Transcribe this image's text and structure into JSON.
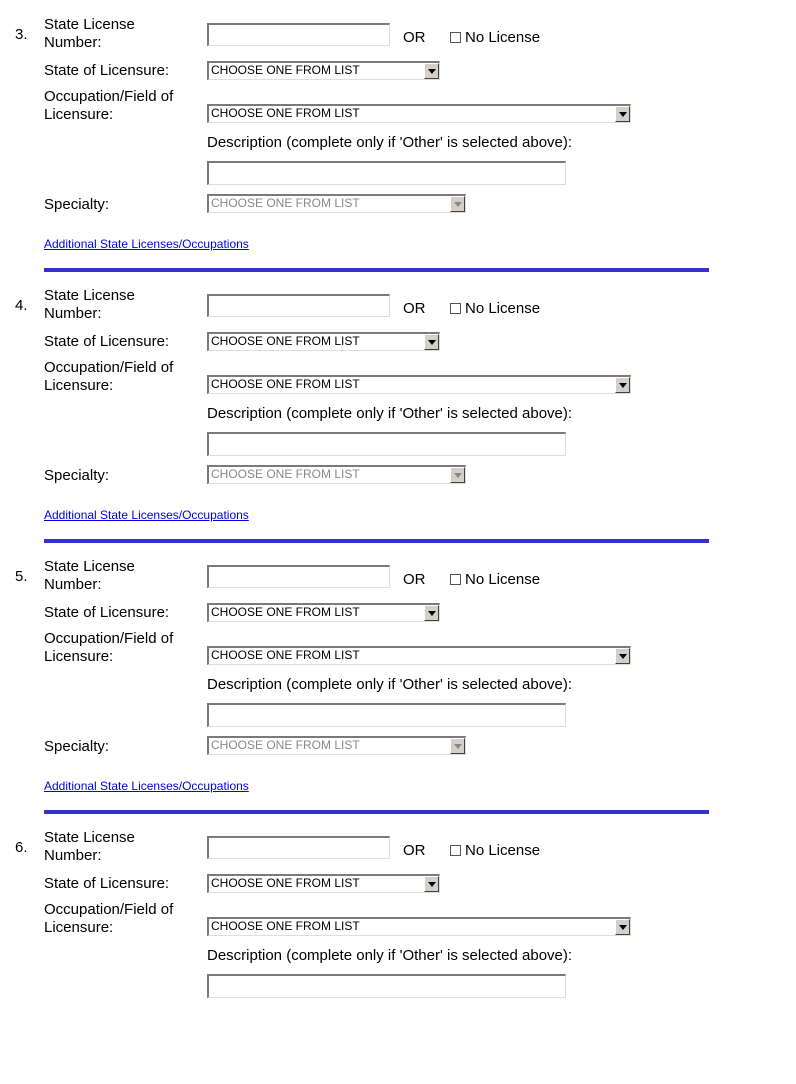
{
  "labels": {
    "license_number": [
      "State License",
      "Number:"
    ],
    "or": "OR",
    "no_license": "No License",
    "state_of_licensure": "State of Licensure:",
    "occupation": [
      "Occupation/Field of",
      "Licensure:"
    ],
    "description": "Description (complete only if 'Other' is selected above):",
    "specialty": "Specialty:",
    "additional_link": "Additional State Licenses/Occupations"
  },
  "colors": {
    "rule": "#3333cc",
    "link": "#0000ee"
  },
  "sections": [
    {
      "number": "3.",
      "license_number": "",
      "no_license_checked": false,
      "state": "CHOOSE ONE FROM LIST",
      "occupation": "CHOOSE ONE FROM LIST",
      "description": "",
      "specialty": "CHOOSE ONE FROM LIST",
      "specialty_disabled": true,
      "show_specialty": true,
      "show_link": true
    },
    {
      "number": "4.",
      "license_number": "",
      "no_license_checked": false,
      "state": "CHOOSE ONE FROM LIST",
      "occupation": "CHOOSE ONE FROM LIST",
      "description": "",
      "specialty": "CHOOSE ONE FROM LIST",
      "specialty_disabled": true,
      "show_specialty": true,
      "show_link": true
    },
    {
      "number": "5.",
      "license_number": "",
      "no_license_checked": false,
      "state": "CHOOSE ONE FROM LIST",
      "occupation": "CHOOSE ONE FROM LIST",
      "description": "",
      "specialty": "CHOOSE ONE FROM LIST",
      "specialty_disabled": true,
      "show_specialty": true,
      "show_link": true
    },
    {
      "number": "6.",
      "license_number": "",
      "no_license_checked": false,
      "state": "CHOOSE ONE FROM LIST",
      "occupation": "CHOOSE ONE FROM LIST",
      "description": "",
      "show_specialty": false,
      "show_link": false
    }
  ]
}
